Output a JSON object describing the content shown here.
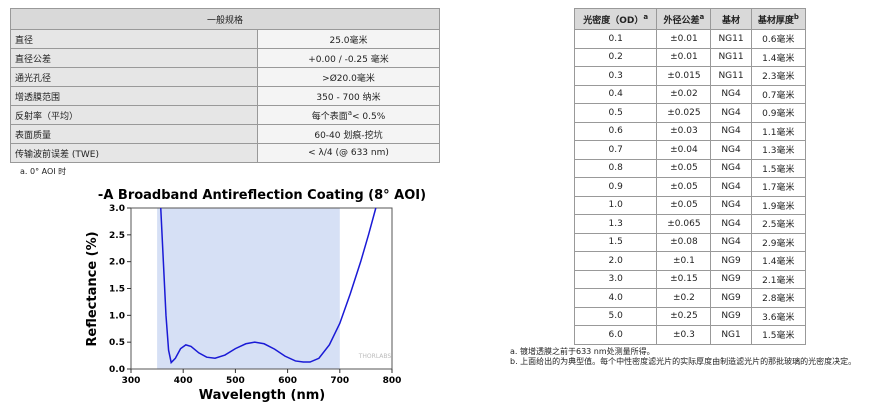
{
  "spec_table": {
    "header": "一般规格",
    "rows": [
      [
        "直径",
        "25.0毫米"
      ],
      [
        "直径公差",
        "+0.00 / -0.25 毫米"
      ],
      [
        "通光孔径",
        ">Ø20.0毫米"
      ],
      [
        "增透膜范围",
        "350 - 700 纳米"
      ],
      [
        "反射率（平均）",
        {
          "text": "每个表面",
          "note": "a",
          "rest": "< 0.5%"
        }
      ],
      [
        "表面质量",
        "60-40 划痕-挖坑"
      ],
      [
        "传输波前误差 (TWE)",
        "< λ/4 (@ 633 nm)"
      ]
    ],
    "footnote": "a. 0° AOI 时"
  },
  "chart": {
    "type": "line",
    "title": "-A Broadband Antireflection Coating (8° AOI)",
    "x_label": "Wavelength (nm)",
    "y_label": "Reflectance (%)",
    "x": [
      357,
      362,
      367,
      372,
      377,
      385,
      395,
      405,
      415,
      430,
      445,
      461,
      480,
      500,
      520,
      537,
      555,
      575,
      595,
      615,
      630,
      643,
      660,
      680,
      700,
      720,
      740,
      755,
      769
    ],
    "values": [
      3.0,
      2.0,
      1.0,
      0.35,
      0.12,
      0.2,
      0.38,
      0.45,
      0.42,
      0.3,
      0.22,
      0.2,
      0.26,
      0.38,
      0.47,
      0.5,
      0.47,
      0.37,
      0.24,
      0.15,
      0.13,
      0.13,
      0.2,
      0.45,
      0.85,
      1.4,
      2.0,
      2.5,
      3.0
    ],
    "color": "#1a1ad6",
    "shaded_range": [
      350,
      700
    ],
    "shade_color": "#d6e0f5",
    "watermark": "THORLABS",
    "xlim": [
      300,
      800
    ],
    "ylim": [
      0,
      3
    ],
    "xticks": [
      300,
      400,
      500,
      600,
      700,
      800
    ],
    "yticks": [
      {
        "value": 0,
        "label": "0.0"
      },
      {
        "value": 0.5,
        "label": "0.5"
      },
      {
        "value": 1,
        "label": "1.0"
      },
      {
        "value": 1.5,
        "label": "1.5"
      },
      {
        "value": 2,
        "label": "2.0"
      },
      {
        "value": 2.5,
        "label": "2.5"
      },
      {
        "value": 3,
        "label": "3.0"
      }
    ]
  },
  "od_table": {
    "headers": [
      {
        "text": "光密度（OD）",
        "note": "a"
      },
      {
        "text": "外径公差",
        "note": "a"
      },
      "基材",
      {
        "text": "基材厚度",
        "note": "b"
      }
    ],
    "rows": [
      [
        "0.1",
        "±0.01",
        "NG11",
        "0.6毫米"
      ],
      [
        "0.2",
        "±0.01",
        "NG11",
        "1.4毫米"
      ],
      [
        "0.3",
        "±0.015",
        "NG11",
        "2.3毫米"
      ],
      [
        "0.4",
        "±0.02",
        "NG4",
        "0.7毫米"
      ],
      [
        "0.5",
        "±0.025",
        "NG4",
        "0.9毫米"
      ],
      [
        "0.6",
        "±0.03",
        "NG4",
        "1.1毫米"
      ],
      [
        "0.7",
        "±0.04",
        "NG4",
        "1.3毫米"
      ],
      [
        "0.8",
        "±0.05",
        "NG4",
        "1.5毫米"
      ],
      [
        "0.9",
        "±0.05",
        "NG4",
        "1.7毫米"
      ],
      [
        "1.0",
        "±0.05",
        "NG4",
        "1.9毫米"
      ],
      [
        "1.3",
        "±0.065",
        "NG4",
        "2.5毫米"
      ],
      [
        "1.5",
        "±0.08",
        "NG4",
        "2.9毫米"
      ],
      [
        "2.0",
        "±0.1",
        "NG9",
        "1.4毫米"
      ],
      [
        "3.0",
        "±0.15",
        "NG9",
        "2.1毫米"
      ],
      [
        "4.0",
        "±0.2",
        "NG9",
        "2.8毫米"
      ],
      [
        "5.0",
        "±0.25",
        "NG9",
        "3.6毫米"
      ],
      [
        "6.0",
        "±0.3",
        "NG1",
        "1.5毫米"
      ]
    ],
    "footnotes": [
      "a. 镀增透膜之前于633 nm处测量所得。",
      "b. 上面给出的为典型值。每个中性密度滤光片的实际厚度由制造滤光片的那批玻璃的光密度决定。"
    ]
  }
}
